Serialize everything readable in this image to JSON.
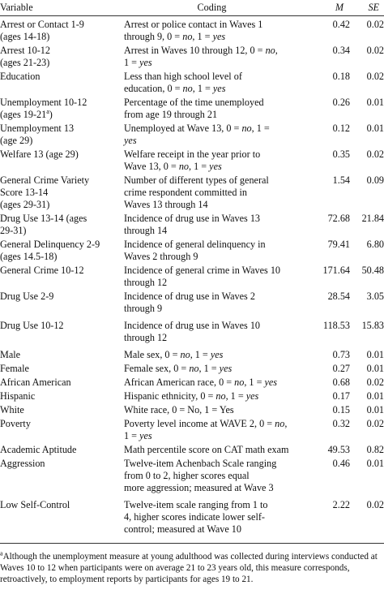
{
  "header": {
    "variable": "Variable",
    "coding": "Coding",
    "m": "M",
    "se": "SE"
  },
  "rows": [
    {
      "var": [
        "Arrest or Contact 1-9",
        "(ages 14-18)"
      ],
      "code": [
        "Arrest or police contact in Waves 1",
        "through 9, 0 = no, 1 = yes"
      ],
      "m": "0.42",
      "se": "0.02",
      "gap": 2
    },
    {
      "var": [
        "Arrest 10-12",
        "(ages 21-23)"
      ],
      "code": [
        "Arrest in Waves 10 through 12, 0 = no,",
        "1 = yes"
      ],
      "m": "0.34",
      "se": "0.02",
      "gap": 2
    },
    {
      "var": [
        "Education"
      ],
      "code": [
        "Less than high school level of",
        "education, 0 = no, 1 = yes"
      ],
      "m": "0.18",
      "se": "0.02",
      "gap": 2
    },
    {
      "var": [
        "Unemployment 10-12",
        "(ages 19-21a)"
      ],
      "code": [
        "Percentage of the time unemployed",
        "from age 19 through 21"
      ],
      "m": "0.26",
      "se": "0.01",
      "gap": 2
    },
    {
      "var": [
        "Unemployment 13",
        "(age 29)"
      ],
      "code": [
        "Unemployed at Wave 13, 0 = no, 1 =",
        "yes"
      ],
      "m": "0.12",
      "se": "0.01",
      "gap": 2
    },
    {
      "var": [
        "Welfare 13 (age 29)"
      ],
      "code": [
        "Welfare receipt in the year prior to",
        "Wave 13, 0 = no, 1 = yes"
      ],
      "m": "0.35",
      "se": "0.02",
      "gap": 2
    },
    {
      "var": [
        "General Crime Variety",
        "Score 13-14",
        "(ages 29-31)"
      ],
      "code": [
        "Number of different types of general",
        "crime respondent committed in",
        "Waves 13 through 14"
      ],
      "m": "1.54",
      "se": "0.09",
      "gap": 2
    },
    {
      "var": [
        "Drug Use 13-14 (ages",
        "29-31)"
      ],
      "code": [
        "Incidence of drug use in Waves 13",
        "through 14"
      ],
      "m": "72.68",
      "se": "21.84",
      "gap": 2
    },
    {
      "var": [
        "General Delinquency 2-9",
        "(ages 14.5-18)"
      ],
      "code": [
        "Incidence of general delinquency in",
        "Waves 2 through 9"
      ],
      "m": "79.41",
      "se": "6.80",
      "gap": 2
    },
    {
      "var": [
        "General Crime 10-12"
      ],
      "code": [
        "Incidence of general crime in Waves 10",
        "through 12"
      ],
      "m": "171.64",
      "se": "50.48",
      "gap": 2
    },
    {
      "var": [
        "Drug Use 2-9"
      ],
      "code": [
        "Incidence of drug use in Waves 2",
        "through 9"
      ],
      "m": "28.54",
      "se": "3.05",
      "gap": 6
    },
    {
      "var": [
        "Drug Use 10-12"
      ],
      "code": [
        "Incidence of drug use in Waves 10",
        "through 12"
      ],
      "m": "118.53",
      "se": "15.83",
      "gap": 6
    },
    {
      "var": [
        "Male"
      ],
      "code": [
        "Male sex, 0 = no, 1 = yes"
      ],
      "m": "0.73",
      "se": "0.01",
      "gap": 2
    },
    {
      "var": [
        "Female"
      ],
      "code": [
        "Female sex, 0 = no, 1 = yes"
      ],
      "m": "0.27",
      "se": "0.01",
      "gap": 2
    },
    {
      "var": [
        "African American"
      ],
      "code": [
        "African American race, 0 = no, 1 = yes"
      ],
      "m": "0.68",
      "se": "0.02",
      "gap": 2
    },
    {
      "var": [
        "Hispanic"
      ],
      "code": [
        "Hispanic ethnicity, 0 = no, 1 = yes"
      ],
      "m": "0.17",
      "se": "0.01",
      "gap": 2
    },
    {
      "var": [
        "White"
      ],
      "code": [
        "White race, 0 = No, 1 = Yes"
      ],
      "m": "0.15",
      "se": "0.01",
      "gap": 2
    },
    {
      "var": [
        "Poverty"
      ],
      "code": [
        "Poverty level income at WAVE 2, 0 = no,",
        "1 = yes"
      ],
      "m": "0.32",
      "se": "0.02",
      "gap": 2
    },
    {
      "var": [
        "Academic Aptitude"
      ],
      "code": [
        "Math percentile score on CAT math exam"
      ],
      "m": "49.53",
      "se": "0.82",
      "gap": 2
    },
    {
      "var": [
        "Aggression"
      ],
      "code": [
        "Twelve-item Achenbach Scale ranging",
        "from 0 to 2, higher scores equal",
        "more aggression; measured at Wave 3"
      ],
      "m": "0.46",
      "se": "0.01",
      "gap": 6
    },
    {
      "var": [
        "Low Self-Control"
      ],
      "code": [
        "Twelve-item scale ranging from 1 to",
        "4, higher scores indicate lower self-",
        "control; measured at Wave 10"
      ],
      "m": "2.22",
      "se": "0.02",
      "gap": 0
    }
  ],
  "footnote": "aAlthough the unemployment measure at young adulthood was collected during interviews conducted at Waves 10 to 12 when participants were on average 21 to 23 years old, this measure corresponds, retroactively, to employment reports by participants for ages 19 to 21."
}
